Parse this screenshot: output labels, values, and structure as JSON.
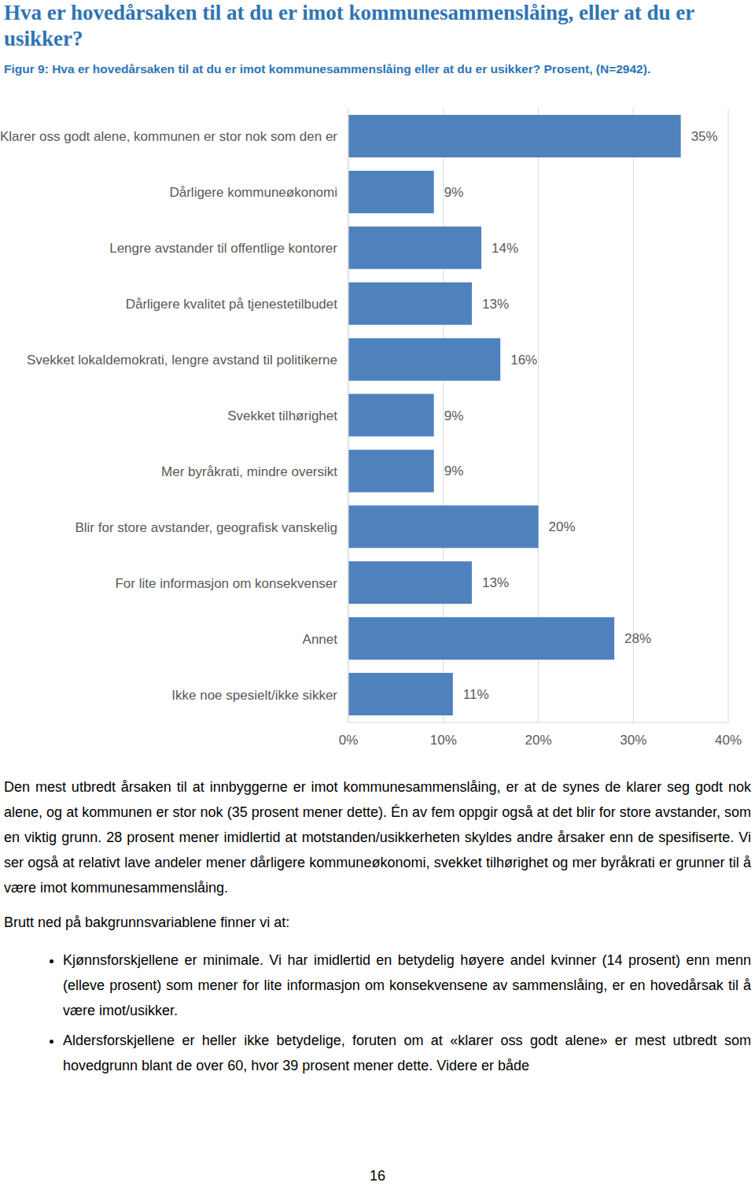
{
  "heading": "Hva er hovedårsaken til at du er imot kommunesammenslåing, eller at du er usikker?",
  "caption": "Figur 9: Hva er hovedårsaken til at du er imot kommunesammenslåing eller at du er usikker? Prosent, (N=2942).",
  "chart_data": {
    "type": "bar",
    "orientation": "horizontal",
    "categories": [
      "Klarer oss godt alene, kommunen er stor nok som den er",
      "Dårligere kommuneøkonomi",
      "Lengre avstander til offentlige kontorer",
      "Dårligere kvalitet på tjenestetilbudet",
      "Svekket lokaldemokrati, lengre avstand til politikerne",
      "Svekket tilhørighet",
      "Mer byråkrati, mindre oversikt",
      "Blir for store avstander, geografisk vanskelig",
      "For lite informasjon om konsekvenser",
      "Annet",
      "Ikke noe spesielt/ikke sikker"
    ],
    "values": [
      35,
      9,
      14,
      13,
      16,
      9,
      9,
      20,
      13,
      28,
      11
    ],
    "value_labels": [
      "35%",
      "9%",
      "14%",
      "13%",
      "16%",
      "9%",
      "9%",
      "20%",
      "13%",
      "28%",
      "11%"
    ],
    "data_labels": true,
    "color": "#4f81bd",
    "xlim": [
      0,
      40
    ],
    "xticks": [
      {
        "value": 0,
        "label": "0%"
      },
      {
        "value": 10,
        "label": "10%"
      },
      {
        "value": 20,
        "label": "20%"
      },
      {
        "value": 30,
        "label": "30%"
      },
      {
        "value": 40,
        "label": "40%"
      }
    ],
    "grid": true
  },
  "paragraphs": [
    "Den mest utbredt årsaken til at innbyggerne er imot kommunesammenslåing, er at de synes de klarer seg godt nok alene, og at kommunen er stor nok (35 prosent mener dette). Én av fem oppgir også at det blir for store avstander, som en viktig grunn. 28 prosent mener imidlertid at motstanden/usikkerheten skyldes andre årsaker enn de spesifiserte. Vi ser også at relativt lave andeler mener dårligere kommuneøkonomi, svekket tilhørighet og mer byråkrati er grunner til å være imot kommunesammenslåing.",
    "Brutt ned på bakgrunnsvariablene finner vi at:"
  ],
  "bullets": [
    "Kjønnsforskjellene er minimale. Vi har imidlertid en betydelig høyere andel kvinner (14 prosent) enn menn (elleve prosent) som mener for lite informasjon om konsekvensene av sammenslåing, er en hovedårsak til å være imot/usikker.",
    "Aldersforskjellene er heller ikke betydelige, foruten om at «klarer oss godt alene» er mest utbredt som hovedgrunn blant de over 60, hvor 39 prosent mener dette. Videre er både"
  ],
  "page_number": "16"
}
